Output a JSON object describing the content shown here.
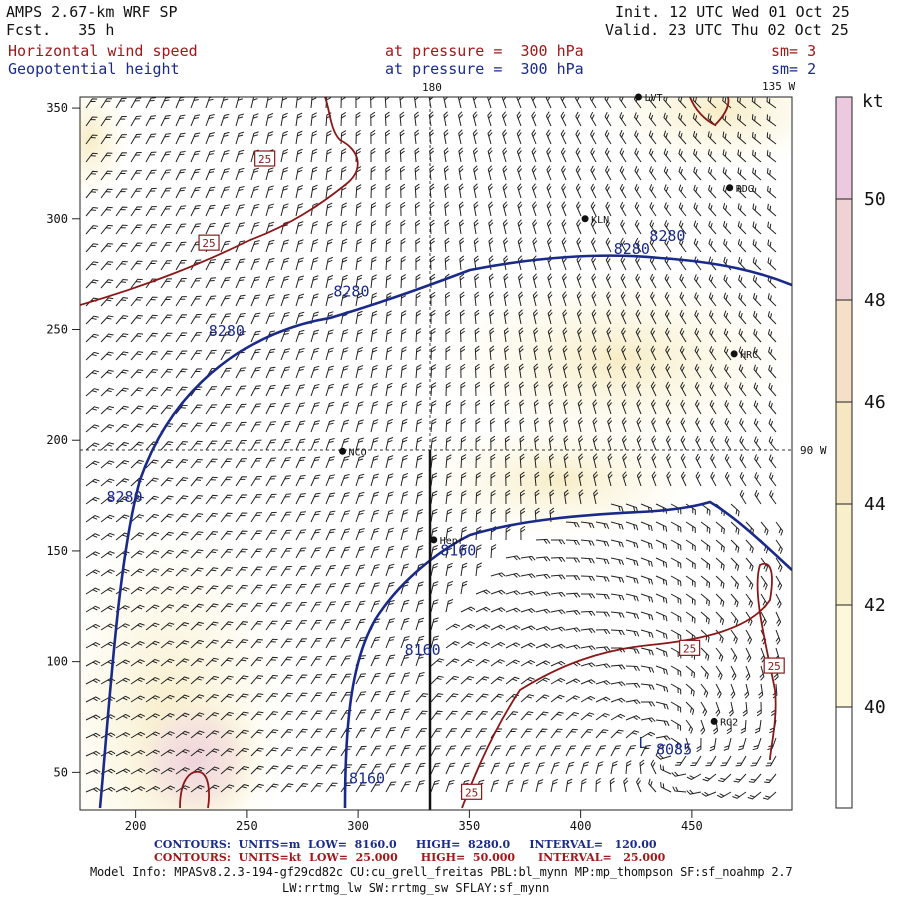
{
  "header": {
    "model": "AMPS 2.67-km WRF SP",
    "fcst_label": "Fcst.",
    "fcst_value": "35 h",
    "init": "Init. 12 UTC Wed 01 Oct 25",
    "valid": "Valid. 23 UTC Thu 02 Oct 25",
    "field1": "Horizontal wind speed",
    "field1_level": "at pressure =  300 hPa",
    "field1_sm": "sm= 3",
    "field2": "Geopotential height",
    "field2_level": "at pressure =  300 hPa",
    "field2_sm": "sm= 2"
  },
  "map": {
    "x_ticks": [
      "200",
      "250",
      "300",
      "350",
      "400",
      "450"
    ],
    "x_tick_values": [
      200,
      250,
      300,
      350,
      400,
      450
    ],
    "y_ticks": [
      "50",
      "100",
      "150",
      "200",
      "250",
      "300",
      "350"
    ],
    "y_tick_values": [
      50,
      100,
      150,
      200,
      250,
      300,
      350
    ],
    "meridian_180": "180",
    "meridian_135w": "135 W",
    "meridian_90w": "90 W",
    "stations": [
      {
        "name": "LVT",
        "x": 426,
        "y": 355
      },
      {
        "name": "RDG",
        "x": 467,
        "y": 314
      },
      {
        "name": "KLN",
        "x": 402,
        "y": 300
      },
      {
        "name": "HRC",
        "x": 469,
        "y": 239
      },
      {
        "name": "NCO",
        "x": 293,
        "y": 195
      },
      {
        "name": "Hepr",
        "x": 334,
        "y": 155
      },
      {
        "name": "RG2",
        "x": 460,
        "y": 73
      }
    ],
    "height_labels": [
      {
        "text": "8280",
        "x": 423,
        "y": 284
      },
      {
        "text": "8280",
        "x": 297,
        "y": 265
      },
      {
        "text": "8280",
        "x": 241,
        "y": 247
      },
      {
        "text": "8280",
        "x": 195,
        "y": 172
      },
      {
        "text": "8280",
        "x": 439,
        "y": 290
      },
      {
        "text": "8160",
        "x": 345,
        "y": 148
      },
      {
        "text": "8160",
        "x": 329,
        "y": 103
      },
      {
        "text": "8160",
        "x": 304,
        "y": 45
      },
      {
        "text": "8085",
        "x": 442,
        "y": 58
      }
    ],
    "speed_labels": [
      {
        "text": "25",
        "x": 258,
        "y": 327
      },
      {
        "text": "25",
        "x": 233,
        "y": 289
      },
      {
        "text": "25",
        "x": 449,
        "y": 106
      },
      {
        "text": "25",
        "x": 487,
        "y": 98
      },
      {
        "text": "25",
        "x": 351,
        "y": 41
      }
    ],
    "low_marks": [
      {
        "text": "L",
        "x": 428,
        "y": 61
      }
    ]
  },
  "colorbar": {
    "unit": "kt",
    "labels": [
      "40",
      "42",
      "44",
      "46",
      "48",
      "50"
    ]
  },
  "footer": {
    "c1_head": "CONTOURS:",
    "c1_units": "UNITS=m",
    "c1_low": "LOW=  8160.0",
    "c1_high": "HIGH=  8280.0",
    "c1_int": "INTERVAL=   120.00",
    "c2_head": "CONTOURS:",
    "c2_units": "UNITS=kt",
    "c2_low": "LOW=  25.000",
    "c2_high": "HIGH=  50.000",
    "c2_int": "INTERVAL=   25.000",
    "info1": "Model Info: MPASv8.2.3-194-gf29cd82c CU:cu_grell_freitas PBL:bl_mynn MP:mp_thompson SF:sf_noahmp 2.7",
    "info2": "LW:rrtmg_lw SW:rrtmg_sw SFLAY:sf_mynn"
  },
  "colors": {
    "height_contour": "#1a2a8a",
    "speed_contour": "#8a1818",
    "fill_light": "#fbf6d6",
    "fill_mid": "#f7ebc3",
    "fill_pink": "#f0d9e0"
  }
}
